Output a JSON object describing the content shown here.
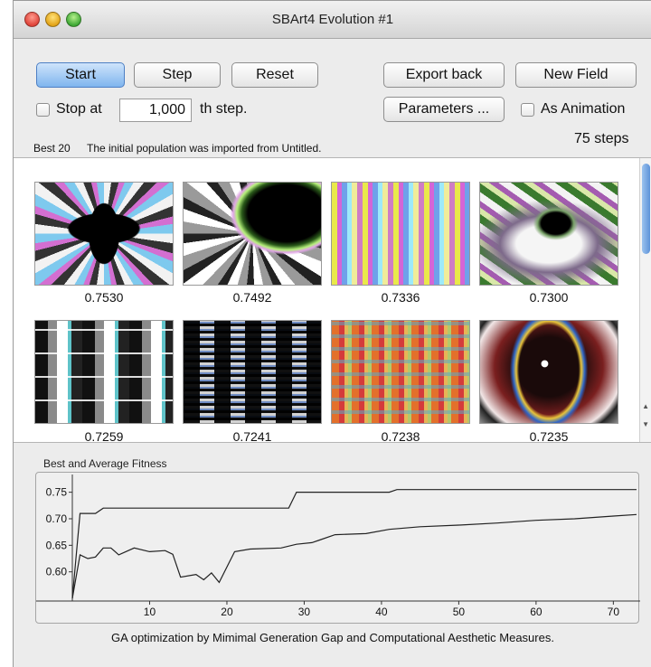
{
  "window": {
    "title": "SBArt4 Evolution #1"
  },
  "toolbar": {
    "start_label": "Start",
    "step_label": "Step",
    "reset_label": "Reset",
    "export_back_label": "Export back",
    "new_field_label": "New Field",
    "parameters_label": "Parameters ...",
    "stop_at_label": "Stop at",
    "stop_at_value": "1,000",
    "th_step_label": "th step.",
    "as_animation_label": "As Animation",
    "steps_readout": "75 steps"
  },
  "status": {
    "best_label": "Best 20",
    "message": "The initial population was imported from Untitled."
  },
  "gallery": {
    "items": [
      {
        "fitness": "0.7530"
      },
      {
        "fitness": "0.7492"
      },
      {
        "fitness": "0.7336"
      },
      {
        "fitness": "0.7300"
      },
      {
        "fitness": "0.7259"
      },
      {
        "fitness": "0.7241"
      },
      {
        "fitness": "0.7238"
      },
      {
        "fitness": "0.7235"
      }
    ]
  },
  "chart_data": {
    "type": "line",
    "title": "Best and Average Fitness",
    "xlim": [
      0,
      73
    ],
    "ylim": [
      0.545,
      0.78
    ],
    "x_ticks": [
      10,
      20,
      30,
      40,
      50,
      60,
      70
    ],
    "y_ticks": [
      0.6,
      0.65,
      0.7,
      0.75
    ],
    "series": [
      {
        "points": [
          [
            0,
            0.55
          ],
          [
            1,
            0.71
          ],
          [
            3,
            0.71
          ],
          [
            4,
            0.72
          ],
          [
            28,
            0.72
          ],
          [
            29,
            0.75
          ],
          [
            41,
            0.75
          ],
          [
            42,
            0.755
          ],
          [
            73,
            0.755
          ]
        ]
      },
      {
        "points": [
          [
            0,
            0.55
          ],
          [
            1,
            0.632
          ],
          [
            2,
            0.625
          ],
          [
            3,
            0.628
          ],
          [
            4,
            0.645
          ],
          [
            5,
            0.645
          ],
          [
            6,
            0.632
          ],
          [
            8,
            0.645
          ],
          [
            10,
            0.638
          ],
          [
            12,
            0.64
          ],
          [
            13,
            0.633
          ],
          [
            14,
            0.59
          ],
          [
            16,
            0.595
          ],
          [
            17,
            0.585
          ],
          [
            18,
            0.598
          ],
          [
            19,
            0.58
          ],
          [
            21,
            0.638
          ],
          [
            23,
            0.643
          ],
          [
            27,
            0.645
          ],
          [
            29,
            0.652
          ],
          [
            31,
            0.655
          ],
          [
            32,
            0.66
          ],
          [
            34,
            0.67
          ],
          [
            38,
            0.672
          ],
          [
            41,
            0.68
          ],
          [
            45,
            0.685
          ],
          [
            50,
            0.688
          ],
          [
            55,
            0.692
          ],
          [
            60,
            0.697
          ],
          [
            65,
            0.7
          ],
          [
            70,
            0.705
          ],
          [
            73,
            0.708
          ]
        ]
      }
    ]
  },
  "footer": {
    "text": "GA optimization by Mimimal Generation Gap and Computational Aesthetic Measures."
  }
}
